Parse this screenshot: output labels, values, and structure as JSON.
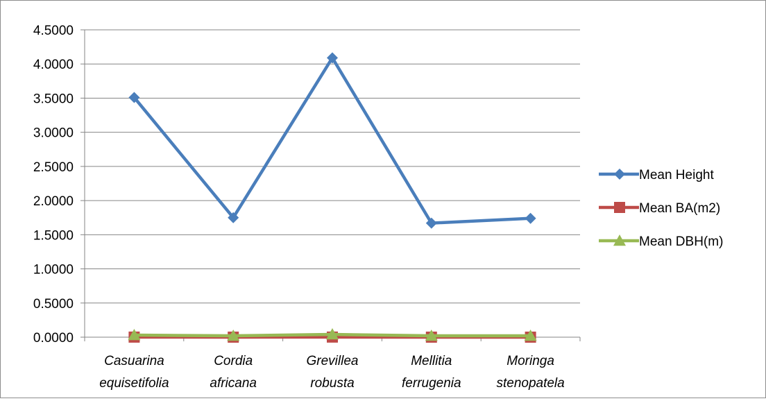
{
  "chart_data": {
    "type": "line",
    "title": "",
    "xlabel": "",
    "ylabel": "",
    "categories": [
      [
        "Casuarina",
        "equisetifolia"
      ],
      [
        "Cordia",
        "africana"
      ],
      [
        "Grevillea",
        "robusta"
      ],
      [
        "Mellitia",
        "ferrugenia"
      ],
      [
        "Moringa",
        "stenopatela"
      ]
    ],
    "y_ticks": [
      "0.0000",
      "0.5000",
      "1.0000",
      "1.5000",
      "2.0000",
      "2.5000",
      "3.0000",
      "3.5000",
      "4.0000",
      "4.5000"
    ],
    "ylim": [
      0,
      4.5
    ],
    "grid": true,
    "legend_position": "right",
    "series": [
      {
        "name": "Mean Height",
        "values": [
          3.51,
          1.75,
          4.09,
          1.67,
          1.74
        ],
        "color": "#4a7ebb",
        "marker": "diamond"
      },
      {
        "name": "Mean BA(m2)",
        "values": [
          0.001,
          0.0005,
          0.0015,
          0.0004,
          0.0004
        ],
        "color": "#be4b48",
        "marker": "square"
      },
      {
        "name": "Mean DBH(m)",
        "values": [
          0.03,
          0.02,
          0.04,
          0.02,
          0.02
        ],
        "color": "#98b954",
        "marker": "triangle"
      }
    ]
  }
}
